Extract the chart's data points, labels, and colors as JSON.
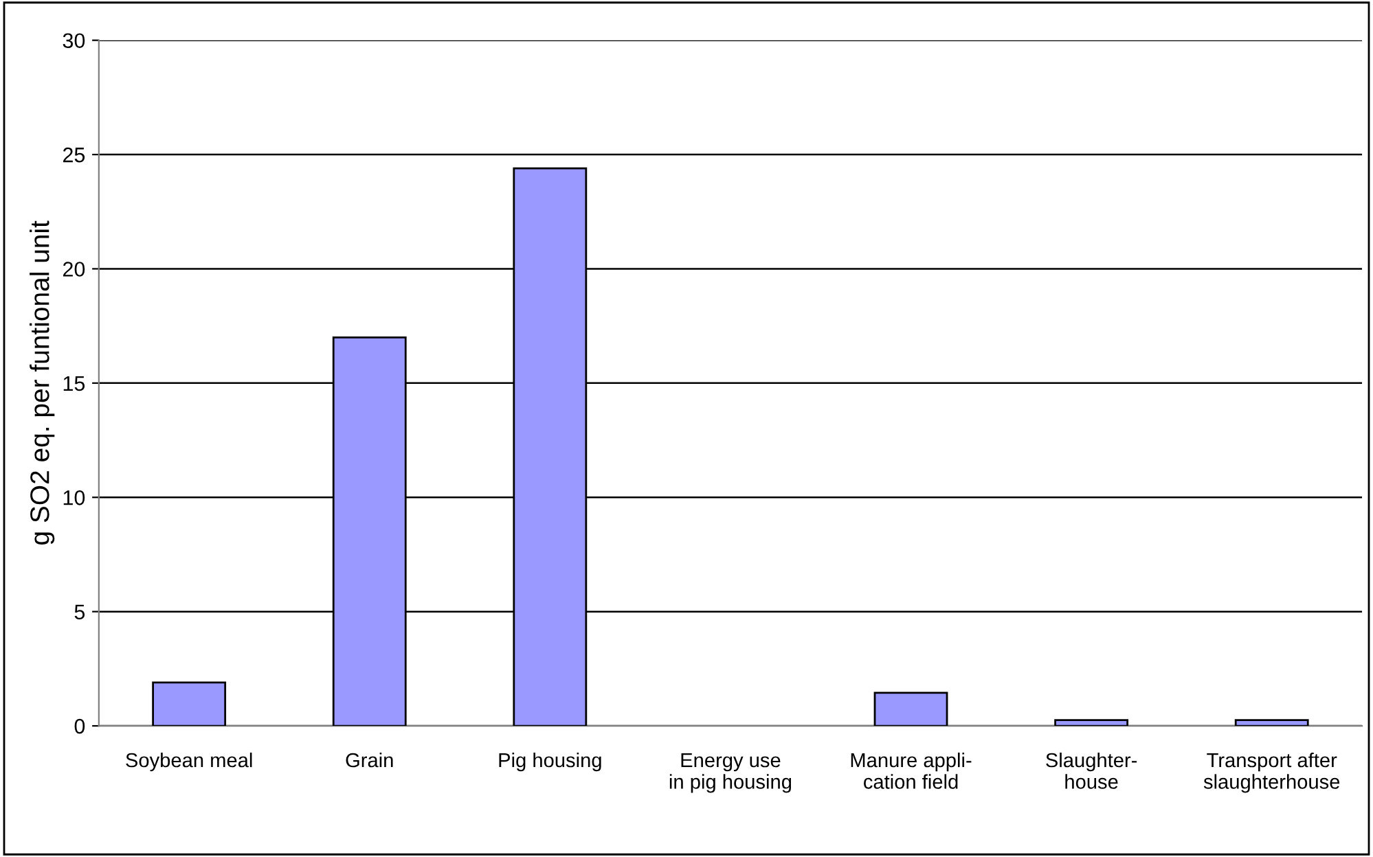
{
  "chart_data": {
    "type": "bar",
    "ylabel": "g SO2 eq. per funtional unit",
    "categories": [
      "Soybean meal",
      "Grain",
      "Pig housing",
      "Energy use\nin pig housing",
      "Manure appli-\ncation field",
      "Slaughter-\nhouse",
      "Transport after\nslaughterhouse"
    ],
    "values": [
      1.9,
      17.0,
      24.4,
      0,
      1.45,
      0.25,
      0.25
    ],
    "color": "#9999ff",
    "ylim": [
      0,
      30
    ],
    "yticks": [
      0,
      5,
      10,
      15,
      20,
      25,
      30
    ],
    "grid": "y"
  }
}
